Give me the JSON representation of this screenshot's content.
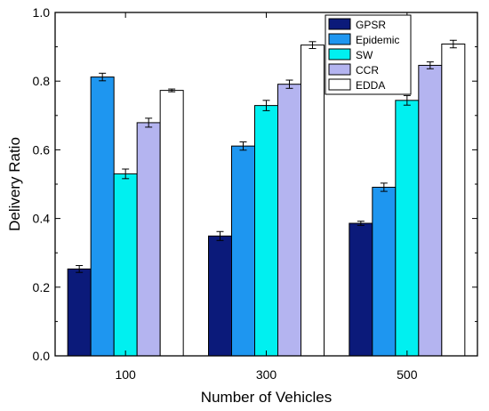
{
  "chart_data": {
    "type": "bar",
    "title": "",
    "xlabel": "Number of Vehicles",
    "ylabel": "Delivery Ratio",
    "ylim": [
      0,
      1.0
    ],
    "yticks": [
      "0.0",
      "0.2",
      "0.4",
      "0.6",
      "0.8",
      "1.0"
    ],
    "categories": [
      "100",
      "300",
      "500"
    ],
    "grid": false,
    "legend_position": "top-right",
    "series": [
      {
        "name": "GPSR",
        "color": "#0b1a7a",
        "values": [
          0.253,
          0.349,
          0.386
        ],
        "errors": [
          0.01,
          0.013,
          0.006
        ]
      },
      {
        "name": "Epidemic",
        "color": "#1e96f0",
        "values": [
          0.812,
          0.611,
          0.491
        ],
        "errors": [
          0.011,
          0.012,
          0.012
        ]
      },
      {
        "name": "SW",
        "color": "#00f0f0",
        "values": [
          0.53,
          0.729,
          0.744
        ],
        "errors": [
          0.014,
          0.015,
          0.014
        ]
      },
      {
        "name": "CCR",
        "color": "#b4b4f0",
        "values": [
          0.679,
          0.791,
          0.846
        ],
        "errors": [
          0.013,
          0.012,
          0.01
        ]
      },
      {
        "name": "EDDA",
        "color": "#ffffff",
        "values": [
          0.773,
          0.905,
          0.908
        ],
        "errors": [
          0.004,
          0.01,
          0.011
        ]
      }
    ]
  }
}
